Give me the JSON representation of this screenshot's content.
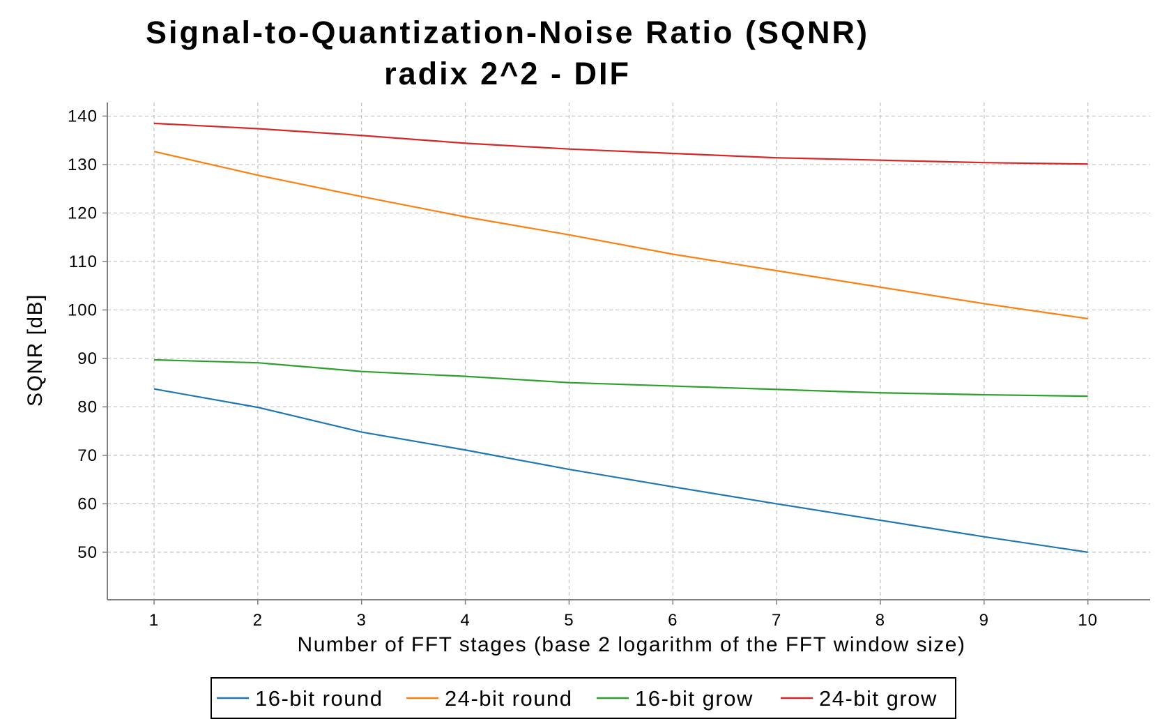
{
  "chart_data": {
    "type": "line",
    "title": "Signal-to-Quantization-Noise Ratio (SQNR)",
    "subtitle": "radix 2^2 - DIF",
    "xlabel": "Number of FFT stages (base 2 logarithm of the FFT window size)",
    "ylabel": "SQNR [dB]",
    "x": [
      1,
      2,
      3,
      4,
      5,
      6,
      7,
      8,
      9,
      10
    ],
    "xlim": [
      0.55,
      10.6
    ],
    "ylim": [
      40.2,
      142.8
    ],
    "xticks": [
      1,
      2,
      3,
      4,
      5,
      6,
      7,
      8,
      9,
      10
    ],
    "yticks": [
      50,
      60,
      70,
      80,
      90,
      100,
      110,
      120,
      130,
      140
    ],
    "grid": true,
    "legend_position": "bottom-center",
    "series": [
      {
        "name": "16-bit round",
        "color": "#1f77b4",
        "values": [
          83.7,
          79.9,
          74.8,
          71.1,
          67.1,
          63.5,
          60.0,
          56.6,
          53.2,
          50.0
        ]
      },
      {
        "name": "24-bit round",
        "color": "#ff7f0e",
        "values": [
          132.7,
          127.8,
          123.4,
          119.2,
          115.5,
          111.5,
          108.1,
          104.7,
          101.3,
          98.2
        ]
      },
      {
        "name": "16-bit grow",
        "color": "#2ca02c",
        "values": [
          89.7,
          89.1,
          87.3,
          86.3,
          85.0,
          84.3,
          83.6,
          82.9,
          82.5,
          82.2
        ]
      },
      {
        "name": "24-bit grow",
        "color": "#d62728",
        "values": [
          138.5,
          137.4,
          136.0,
          134.4,
          133.2,
          132.3,
          131.4,
          130.9,
          130.4,
          130.1
        ]
      }
    ]
  }
}
